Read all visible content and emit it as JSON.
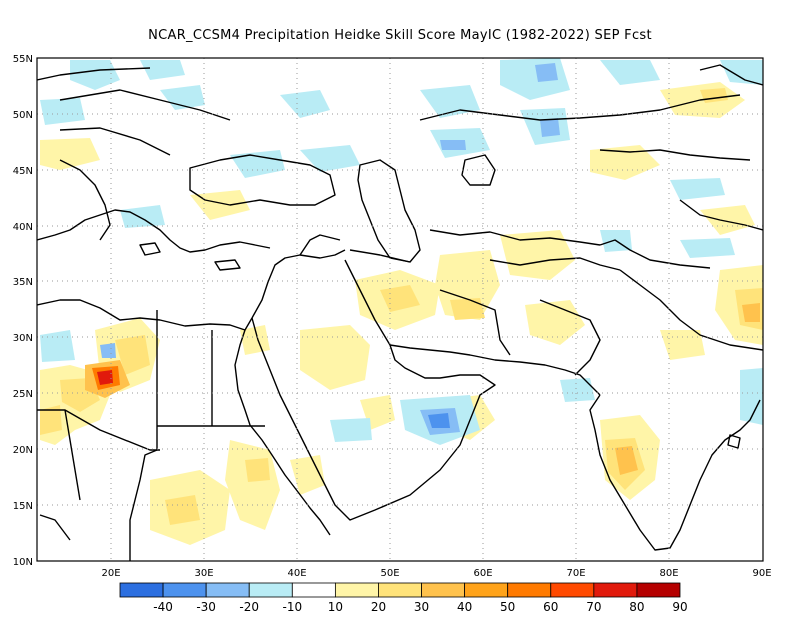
{
  "title": "NCAR_CCSM4  Precipitation Heidke Skill Score MayIC (1982-2022) SEP Fcst",
  "lat_labels": [
    "55N",
    "50N",
    "45N",
    "40N",
    "35N",
    "30N",
    "25N",
    "20N",
    "15N",
    "10N"
  ],
  "lon_labels": [
    "20E",
    "30E",
    "40E",
    "50E",
    "60E",
    "70E",
    "80E",
    "90E"
  ],
  "colorbar": {
    "colors": [
      "#2c6fe0",
      "#4d92ee",
      "#86bdf5",
      "#b9ecf5",
      "#ffffff",
      "#fff5a8",
      "#ffe37a",
      "#ffc24d",
      "#ffa31a",
      "#ff7a00",
      "#ff4a00",
      "#e11a0c",
      "#b50000"
    ],
    "labels": [
      "-40",
      "-30",
      "-20",
      "-10",
      "10",
      "20",
      "30",
      "40",
      "50",
      "60",
      "70",
      "80",
      "90"
    ]
  }
}
